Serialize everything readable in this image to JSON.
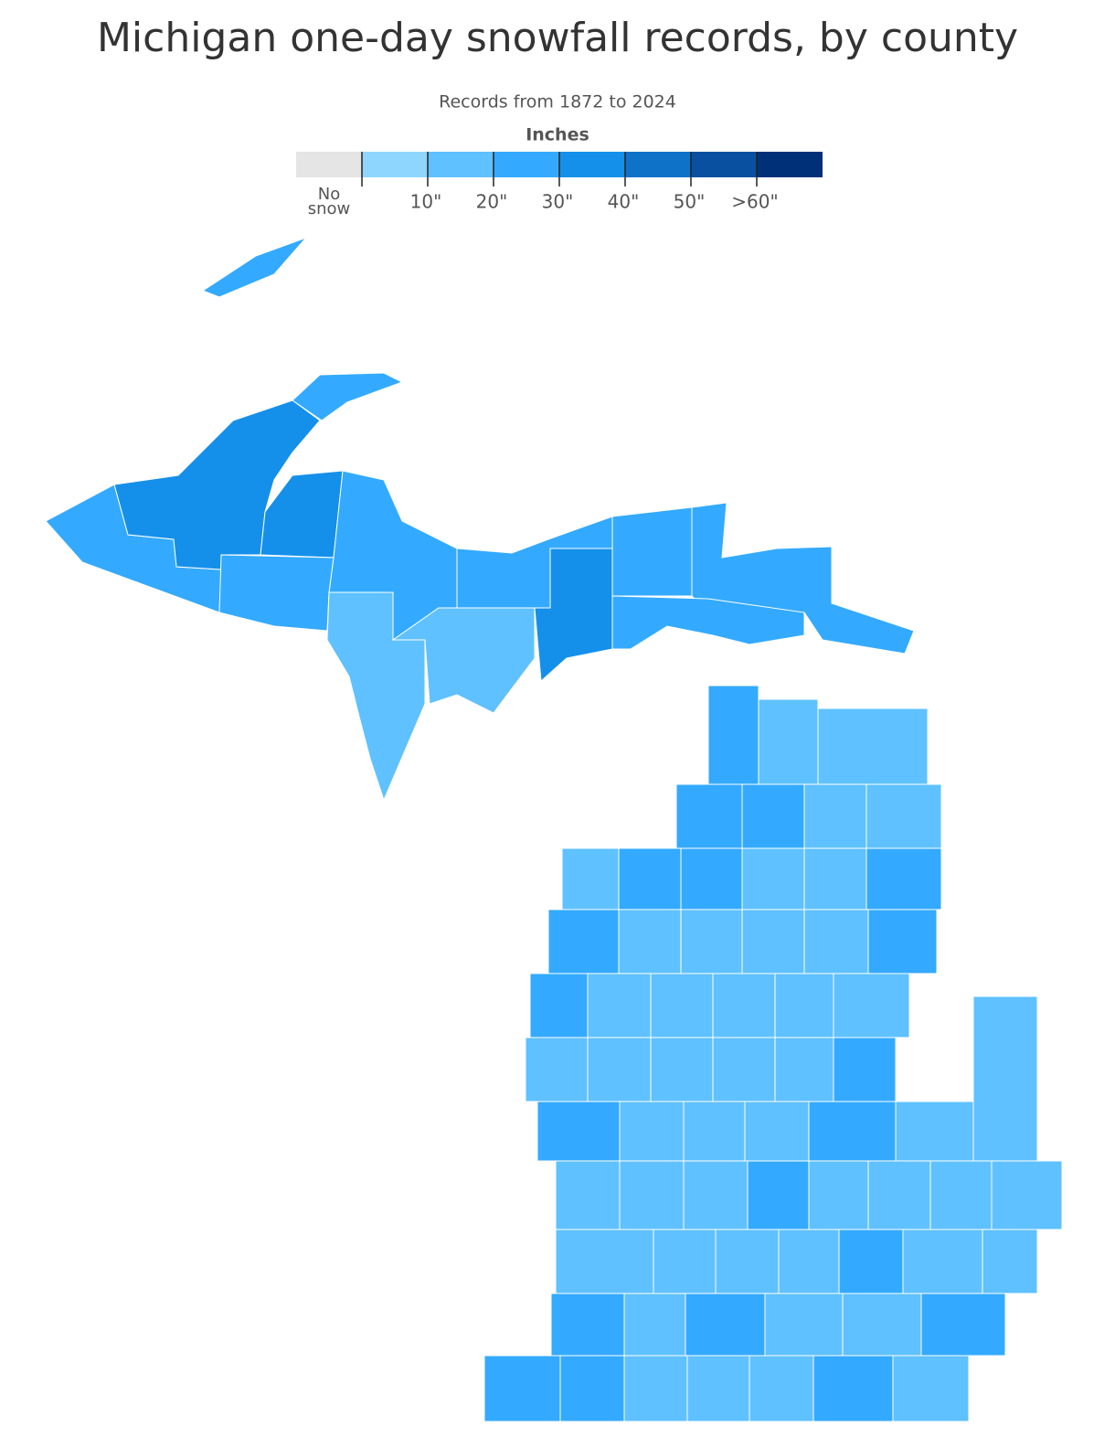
{
  "chart_data": {
    "type": "choropleth",
    "title": "Michigan one-day snowfall records, by county",
    "subtitle": "Records from 1872 to 2024",
    "legend": {
      "title": "Inches",
      "no_data_label": "No snow",
      "colors": [
        "#e5e5e5",
        "#8fd6ff",
        "#5fc1ff",
        "#33aaff",
        "#1590ea",
        "#0f72c9",
        "#0950a0",
        "#003078"
      ],
      "ticks": [
        {
          "value": 10,
          "label": "10\""
        },
        {
          "value": 20,
          "label": "20\""
        },
        {
          "value": 30,
          "label": "30\""
        },
        {
          "value": 40,
          "label": "40\""
        },
        {
          "value": 50,
          "label": "50\""
        },
        {
          "value": 60,
          "label": ">60\""
        }
      ]
    },
    "counties": [
      3,
      4,
      3,
      4,
      3,
      3,
      2,
      2,
      3,
      4,
      3,
      3,
      3,
      3,
      2,
      2,
      3,
      3,
      2,
      2,
      2,
      3,
      3,
      2,
      2,
      3,
      3,
      2,
      2,
      2,
      2,
      3,
      3,
      2,
      2,
      2,
      2,
      2,
      2,
      2,
      2,
      2,
      2,
      3,
      3,
      2,
      2,
      2,
      3,
      2,
      2,
      2,
      2,
      2,
      3,
      2,
      2,
      2,
      2,
      2,
      2,
      2,
      2,
      3,
      2,
      2,
      3,
      2,
      3,
      2,
      2,
      3,
      3,
      3,
      2,
      2,
      2,
      3,
      2
    ]
  }
}
